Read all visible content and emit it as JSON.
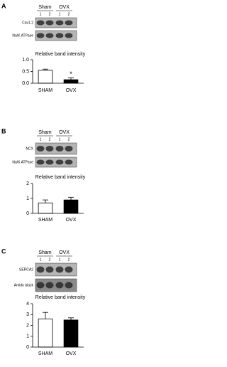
{
  "chart_data": [
    {
      "type": "bar",
      "panel": "A",
      "groups": [
        "Sham",
        "OVX"
      ],
      "lanes": [
        "1",
        "2",
        "1",
        "2"
      ],
      "blot_labels": [
        "Cav1.2",
        "Na/K ATPase"
      ],
      "title": "Relative band intensity",
      "categories": [
        "SHAM",
        "OVX"
      ],
      "values": [
        0.55,
        0.15
      ],
      "errors": [
        0.05,
        0.08
      ],
      "colors": [
        "#ffffff",
        "#000000"
      ],
      "annotations": [
        "",
        "*"
      ],
      "ylim": [
        0,
        1.0
      ],
      "yticks": [
        {
          "value": 0,
          "label": "0.0"
        },
        0.5,
        {
          "value": 1.0,
          "label": "1.0"
        }
      ]
    },
    {
      "type": "bar",
      "panel": "B",
      "groups": [
        "Sham",
        "OVX"
      ],
      "lanes": [
        "1",
        "2",
        "1",
        "2"
      ],
      "blot_labels": [
        "NCX",
        "Na/K ATPase"
      ],
      "title": "Relative band intensity",
      "categories": [
        "SHAM",
        "OVX"
      ],
      "values": [
        0.7,
        0.9
      ],
      "errors": [
        0.2,
        0.18
      ],
      "colors": [
        "#ffffff",
        "#000000"
      ],
      "ylim": [
        0,
        2
      ],
      "yticks": [
        0,
        1,
        2
      ]
    },
    {
      "type": "bar",
      "panel": "C",
      "groups": [
        "Sham",
        "OVX"
      ],
      "lanes": [
        "1",
        "2",
        "1",
        "2"
      ],
      "blot_labels": [
        "SERCA2",
        "Amido black"
      ],
      "title": "Relative band intensity",
      "categories": [
        "SHAM",
        "OVX"
      ],
      "values": [
        2.6,
        2.5
      ],
      "errors": [
        0.6,
        0.2
      ],
      "colors": [
        "#ffffff",
        "#000000"
      ],
      "ylim": [
        0,
        4
      ],
      "yticks": [
        0,
        1,
        2,
        3,
        4
      ]
    }
  ]
}
